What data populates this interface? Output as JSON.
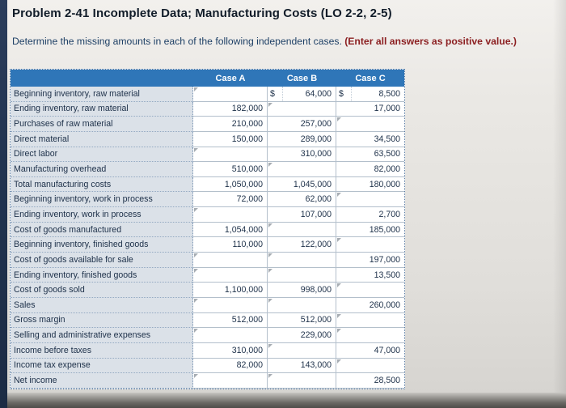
{
  "page": {
    "title": "Problem 2-41 Incomplete Data; Manufacturing Costs (LO 2-2, 2-5)",
    "instruction": "Determine the missing amounts in each of the following independent cases.",
    "instruction_emphasis": "(Enter all answers as positive value.)"
  },
  "table": {
    "columns": [
      "Case A",
      "Case B",
      "Case C"
    ],
    "currency_symbol": "$",
    "rows": [
      {
        "label": "Beginning inventory, raw material",
        "cells": [
          "",
          "64,000",
          "8,500"
        ],
        "prefixes": [
          "",
          "$",
          "$"
        ]
      },
      {
        "label": "Ending inventory, raw material",
        "cells": [
          "182,000",
          "",
          "17,000"
        ]
      },
      {
        "label": "Purchases of raw material",
        "cells": [
          "210,000",
          "257,000",
          ""
        ]
      },
      {
        "label": "Direct material",
        "cells": [
          "150,000",
          "289,000",
          "34,500"
        ]
      },
      {
        "label": "Direct labor",
        "cells": [
          "",
          "310,000",
          "63,500"
        ]
      },
      {
        "label": "Manufacturing overhead",
        "cells": [
          "510,000",
          "",
          "82,000"
        ]
      },
      {
        "label": "Total manufacturing costs",
        "cells": [
          "1,050,000",
          "1,045,000",
          "180,000"
        ]
      },
      {
        "label": "Beginning inventory, work in process",
        "cells": [
          "72,000",
          "62,000",
          ""
        ]
      },
      {
        "label": "Ending inventory, work in process",
        "cells": [
          "",
          "107,000",
          "2,700"
        ]
      },
      {
        "label": "Cost of goods manufactured",
        "cells": [
          "1,054,000",
          "",
          "185,000"
        ]
      },
      {
        "label": "Beginning inventory, finished goods",
        "cells": [
          "110,000",
          "122,000",
          ""
        ]
      },
      {
        "label": "Cost of goods available for sale",
        "cells": [
          "",
          "",
          "197,000"
        ]
      },
      {
        "label": "Ending inventory, finished goods",
        "cells": [
          "",
          "",
          "13,500"
        ]
      },
      {
        "label": "Cost of goods sold",
        "cells": [
          "1,100,000",
          "998,000",
          ""
        ]
      },
      {
        "label": "Sales",
        "cells": [
          "",
          "",
          "260,000"
        ]
      },
      {
        "label": "Gross margin",
        "cells": [
          "512,000",
          "512,000",
          ""
        ]
      },
      {
        "label": "Selling and administrative expenses",
        "cells": [
          "",
          "229,000",
          ""
        ]
      },
      {
        "label": "Income before taxes",
        "cells": [
          "310,000",
          "",
          "47,000"
        ]
      },
      {
        "label": "Income tax expense",
        "cells": [
          "82,000",
          "143,000",
          ""
        ]
      },
      {
        "label": "Net income",
        "cells": [
          "",
          "",
          "28,500"
        ]
      }
    ]
  },
  "colors": {
    "header_blue": "#2f76b8",
    "emphasis_red": "#8c2022",
    "instruction_blue": "#1e4066",
    "label_cell_bg": "#dbe1e8"
  }
}
